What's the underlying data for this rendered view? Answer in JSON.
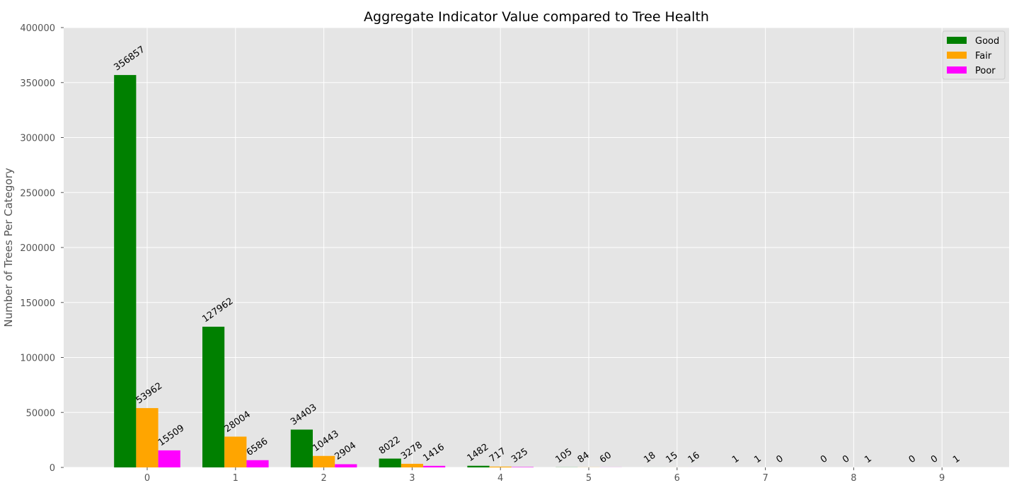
{
  "chart_data": {
    "type": "bar",
    "title": "Aggregate Indicator Value compared to Tree Health",
    "xlabel": "",
    "ylabel": "Number of Trees Per Category",
    "categories": [
      "0",
      "1",
      "2",
      "3",
      "4",
      "5",
      "6",
      "7",
      "8",
      "9"
    ],
    "series": [
      {
        "name": "Good",
        "color": "#008000",
        "values": [
          356857,
          127962,
          34403,
          8022,
          1482,
          105,
          18,
          1,
          0,
          0
        ]
      },
      {
        "name": "Fair",
        "color": "#FFA500",
        "values": [
          53962,
          28004,
          10443,
          3278,
          717,
          84,
          15,
          1,
          0,
          0
        ]
      },
      {
        "name": "Poor",
        "color": "#FF00FF",
        "values": [
          15509,
          6586,
          2904,
          1416,
          325,
          60,
          16,
          0,
          1,
          1
        ]
      }
    ],
    "ylim": [
      0,
      400000
    ],
    "yticks": [
      "0",
      "50000",
      "100000",
      "150000",
      "200000",
      "250000",
      "300000",
      "350000",
      "400000"
    ],
    "grid": true,
    "legend": "top-right",
    "background_color": "#E5E5E5",
    "grid_color": "#FFFFFF"
  }
}
